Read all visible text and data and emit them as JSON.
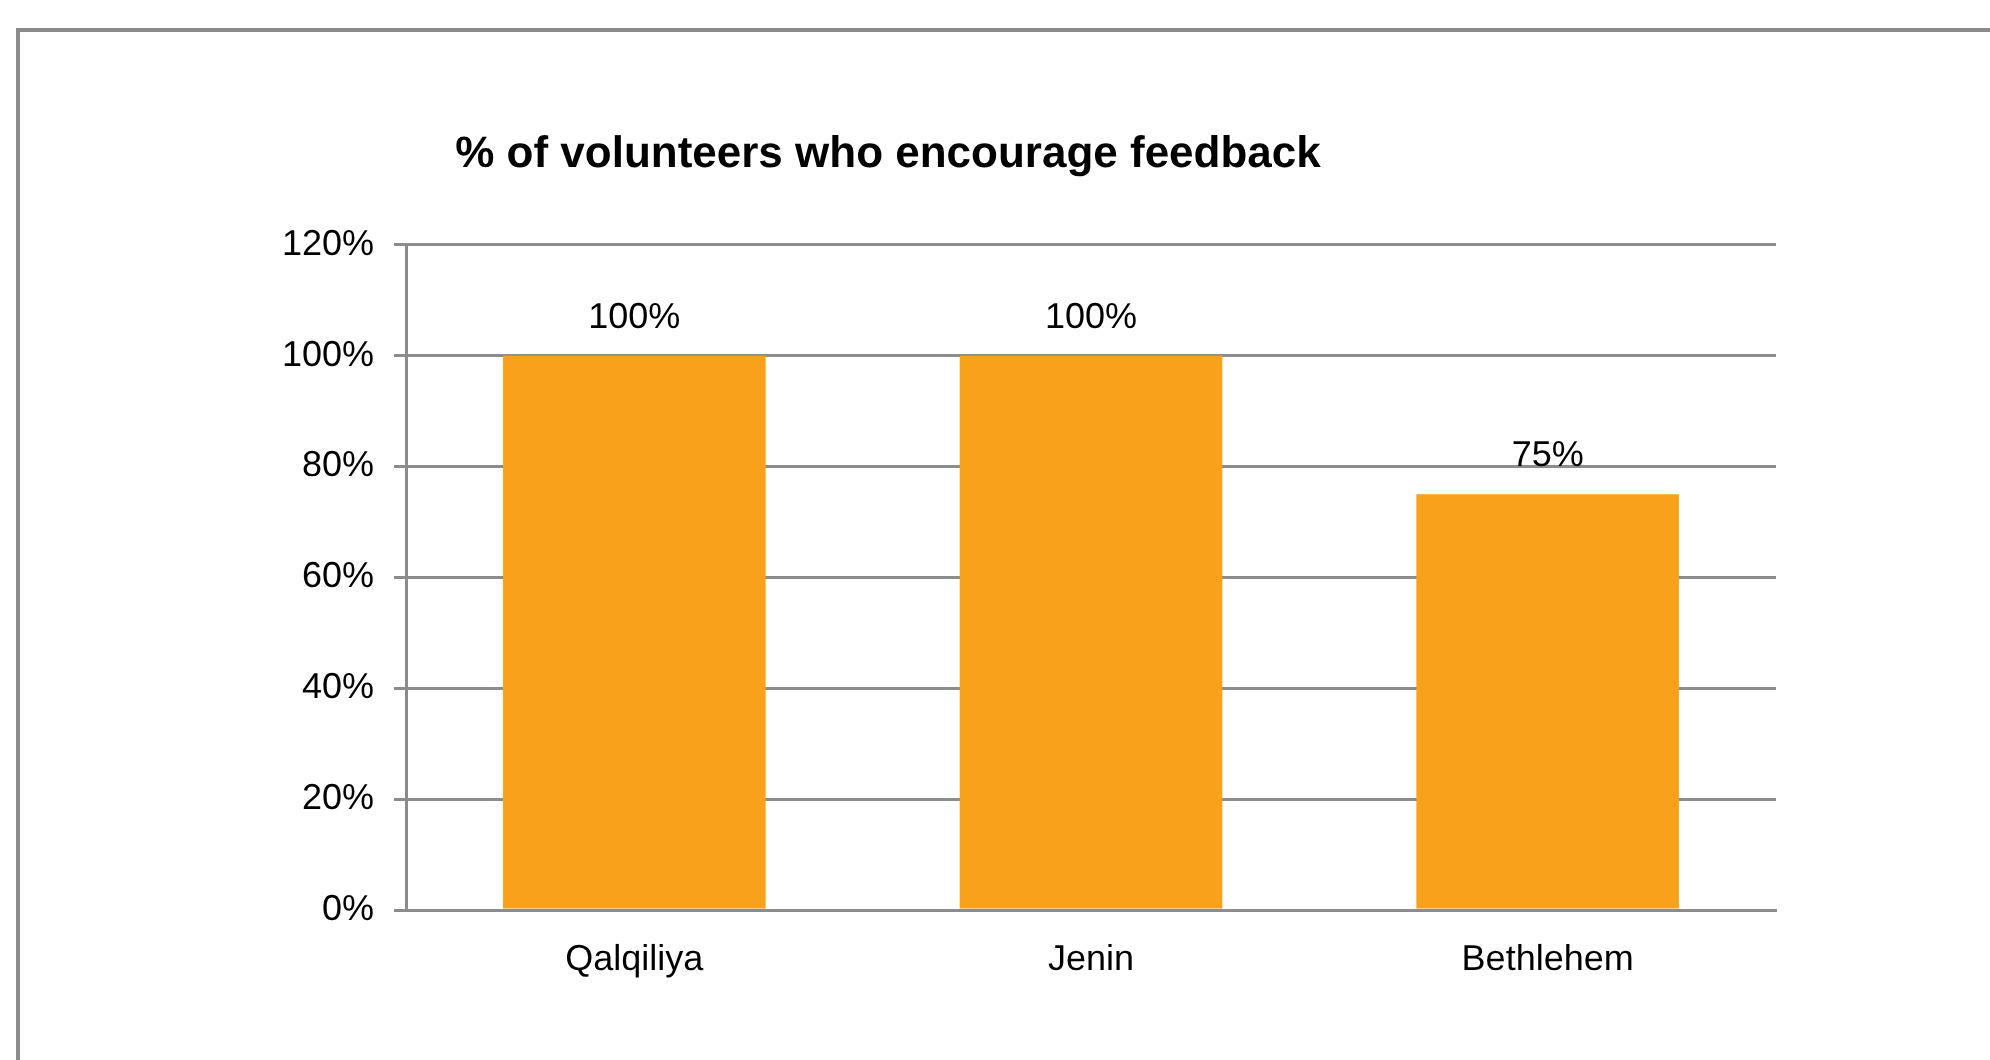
{
  "chart_data": {
    "type": "bar",
    "title": "% of volunteers who encourage feedback",
    "categories": [
      "Qalqiliya",
      "Jenin",
      "Bethlehem"
    ],
    "values": [
      100,
      100,
      75
    ],
    "color": "#f9a11b",
    "value_labels": [
      "100%",
      "100%",
      "75%"
    ],
    "ylim": [
      0,
      120
    ],
    "yticks": [
      {
        "value": 0,
        "label": "0%"
      },
      {
        "value": 20,
        "label": "20%"
      },
      {
        "value": 40,
        "label": "40%"
      },
      {
        "value": 60,
        "label": "60%"
      },
      {
        "value": 80,
        "label": "80%"
      },
      {
        "value": 100,
        "label": "100%"
      },
      {
        "value": 120,
        "label": "120%"
      }
    ],
    "grid": "y",
    "legend": false
  }
}
